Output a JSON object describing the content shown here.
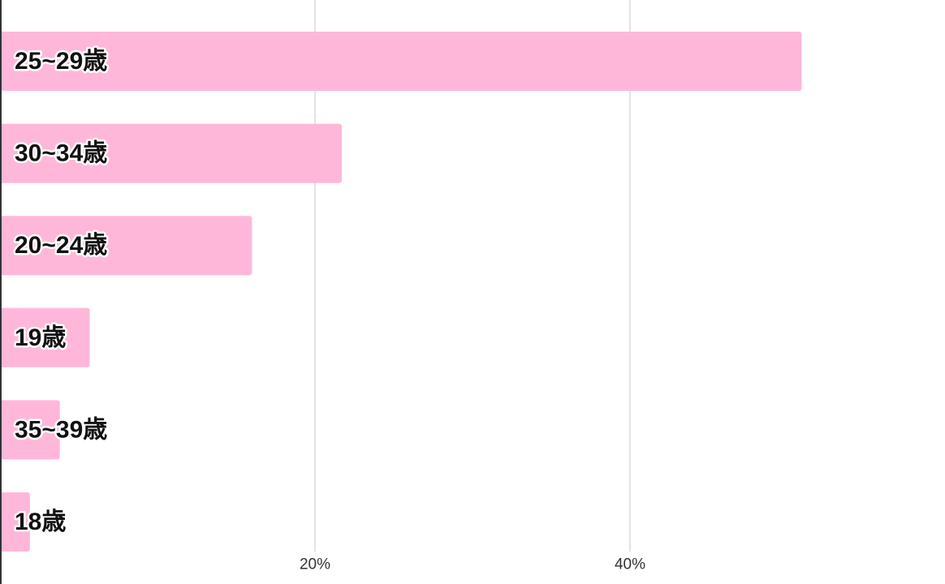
{
  "chart_data": {
    "type": "bar",
    "orientation": "horizontal",
    "categories": [
      "25~29歳",
      "30~34歳",
      "20~24歳",
      "19歳",
      "35~39歳",
      "18歳"
    ],
    "values": [
      50.9,
      21.7,
      16.0,
      5.7,
      3.8,
      1.9
    ],
    "color": "#ffb7d9",
    "xlim": [
      0,
      60
    ],
    "xticks": [
      {
        "value": 20,
        "label": "20%"
      },
      {
        "value": 40,
        "label": "40%"
      }
    ],
    "grid": true
  }
}
